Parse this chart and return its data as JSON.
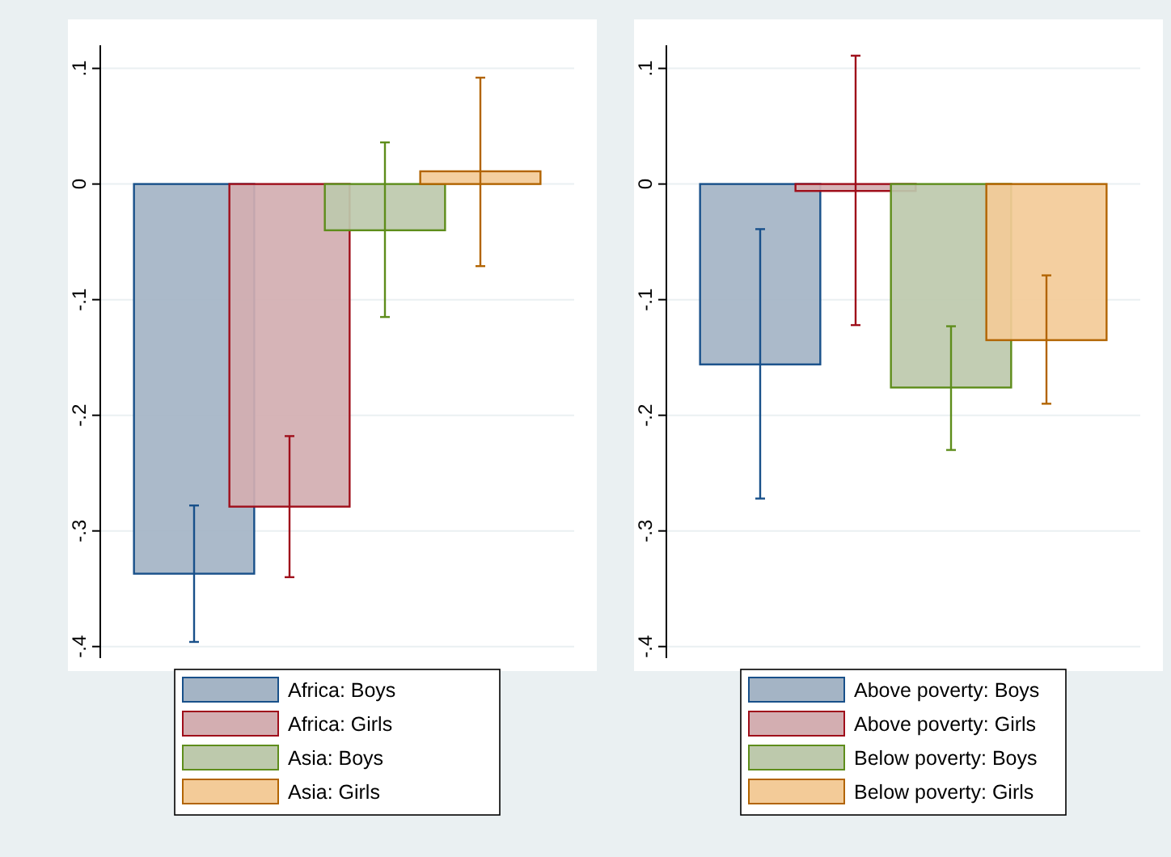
{
  "chart_data": [
    {
      "type": "bar",
      "categories": [
        null,
        null,
        null,
        null
      ],
      "ylim": [
        -0.41,
        0.12
      ],
      "yticks": [
        {
          "value": -0.4,
          "label": "-.4"
        },
        {
          "value": -0.3,
          "label": "-.3"
        },
        {
          "value": -0.2,
          "label": "-.2"
        },
        {
          "value": -0.1,
          "label": "-.1"
        },
        0,
        {
          "value": 0.1,
          "label": ".1"
        }
      ],
      "grid": "y",
      "legend": "bottom",
      "series": [
        {
          "name": "Africa: Boys",
          "color": "#a4b4c5",
          "values": [
            -0.337,
            null,
            null,
            null
          ],
          "errors": [
            [
              -0.396,
              -0.278
            ],
            null,
            null,
            null
          ]
        },
        {
          "name": "Africa: Girls",
          "color": "#d3aeb1",
          "values": [
            null,
            -0.279,
            null,
            null
          ],
          "errors": [
            null,
            [
              -0.34,
              -0.218
            ],
            null,
            null
          ]
        },
        {
          "name": "Asia: Boys",
          "color": "#bdc9ac",
          "values": [
            null,
            null,
            -0.04,
            null
          ],
          "errors": [
            null,
            null,
            [
              -0.115,
              0.036
            ],
            null
          ]
        },
        {
          "name": "Asia: Girls",
          "color": "#f3cb98",
          "values": [
            null,
            null,
            null,
            0.011
          ],
          "errors": [
            null,
            null,
            null,
            [
              -0.071,
              0.092
            ]
          ]
        }
      ]
    },
    {
      "type": "bar",
      "categories": [
        null,
        null,
        null,
        null
      ],
      "ylim": [
        -0.41,
        0.12
      ],
      "yticks": [
        {
          "value": -0.4,
          "label": "-.4"
        },
        {
          "value": -0.3,
          "label": "-.3"
        },
        {
          "value": -0.2,
          "label": "-.2"
        },
        {
          "value": -0.1,
          "label": "-.1"
        },
        0,
        {
          "value": 0.1,
          "label": ".1"
        }
      ],
      "grid": "y",
      "legend": "bottom",
      "series": [
        {
          "name": "Above poverty: Boys",
          "color": "#a4b4c5",
          "values": [
            -0.156,
            null,
            null,
            null
          ],
          "errors": [
            [
              -0.272,
              -0.039
            ],
            null,
            null,
            null
          ]
        },
        {
          "name": "Above poverty: Girls",
          "color": "#d3aeb1",
          "values": [
            null,
            -0.006,
            null,
            null
          ],
          "errors": [
            null,
            [
              -0.122,
              0.111
            ],
            null,
            null
          ]
        },
        {
          "name": "Below poverty: Boys",
          "color": "#bdc9ac",
          "values": [
            null,
            null,
            -0.176,
            null
          ],
          "errors": [
            null,
            null,
            [
              -0.23,
              -0.123
            ],
            null
          ]
        },
        {
          "name": "Below poverty: Girls",
          "color": "#f3cb98",
          "values": [
            null,
            null,
            null,
            -0.135
          ],
          "errors": [
            null,
            null,
            null,
            [
              -0.19,
              -0.079
            ]
          ]
        }
      ]
    }
  ]
}
